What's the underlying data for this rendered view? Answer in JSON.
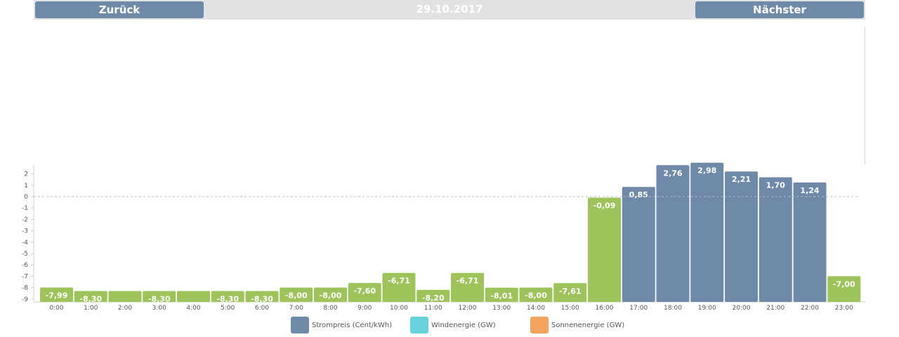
{
  "nav": {
    "back_label": "Zurück",
    "date": "29.10.2017",
    "next_label": "Nächster"
  },
  "colors": {
    "positive": "#6f8aa8",
    "negative": "#9dc35a",
    "wind": "#67d1dc",
    "solar": "#f5a460"
  },
  "legend": [
    {
      "label": "Strompreis (Cent/kWh)",
      "color": "#6f8aa8"
    },
    {
      "label": "Windenergie (GW)",
      "color": "#67d1dc"
    },
    {
      "label": "Sonnenenergie (GW)",
      "color": "#f5a460"
    }
  ],
  "chart_data": {
    "type": "bar",
    "categories": [
      "0:00",
      "1:00",
      "2:00",
      "3:00",
      "4:00",
      "5:00",
      "6:00",
      "7:00",
      "8:00",
      "9:00",
      "10:00",
      "11:00",
      "12:00",
      "13:00",
      "14:00",
      "15:00",
      "16:00",
      "17:00",
      "18:00",
      "19:00",
      "20:00",
      "21:00",
      "22:00",
      "23:00"
    ],
    "series": [
      {
        "name": "Strompreis (Cent/kWh)",
        "values": [
          -7.99,
          -8.3,
          -8.3,
          -8.3,
          -8.3,
          -8.3,
          -8.3,
          -8.0,
          -8.0,
          -7.6,
          -6.71,
          -8.2,
          -6.71,
          -8.01,
          -8.0,
          -7.61,
          -0.09,
          0.85,
          2.76,
          2.98,
          2.21,
          1.7,
          1.24,
          -7.0
        ],
        "labels": [
          "-7,99",
          "-8,30",
          "",
          "-8,30",
          "",
          "-8,30",
          "-8,30",
          "-8,00",
          "-8,00",
          "-7,60",
          "-6,71",
          "-8,20",
          "-6,71",
          "-8,01",
          "-8,00",
          "-7,61",
          "-0,09",
          "0,85",
          "2,76",
          "2,98",
          "2,21",
          "1,70",
          "1,24",
          "-7,00"
        ]
      }
    ],
    "yticks": [
      2,
      1,
      0,
      -1,
      -2,
      -3,
      -4,
      -5,
      -6,
      -7,
      -8,
      -9
    ],
    "ylim": [
      -9.4,
      3.1
    ],
    "zero_line": "dashed",
    "legend_position": "bottom"
  }
}
